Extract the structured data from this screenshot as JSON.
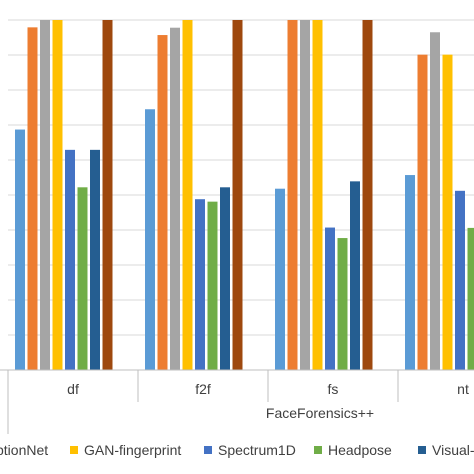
{
  "chart_data": {
    "type": "bar",
    "categories": [
      "df",
      "f2f",
      "fs",
      "nt"
    ],
    "group_label": "FaceForensics++",
    "ylim": [
      0,
      100
    ],
    "grid": true,
    "legend_position": "bottom",
    "series": [
      {
        "name": "",
        "color": "#5b9bd5",
        "values": [
          68.7,
          74.5,
          51.8,
          55.7
        ]
      },
      {
        "name": "...ptionNet",
        "color": "#ed7d31",
        "values": [
          97.9,
          95.7,
          100,
          90.1
        ]
      },
      {
        "name": "",
        "color": "#a5a5a5",
        "values": [
          100,
          97.8,
          100,
          96.5
        ]
      },
      {
        "name": "GAN-fingerprint",
        "color": "#ffc000",
        "values": [
          100,
          100,
          100,
          90.1
        ]
      },
      {
        "name": "Spectrum1D",
        "color": "#4472c4",
        "values": [
          62.9,
          48.8,
          40.7,
          51.2
        ]
      },
      {
        "name": "Headpose",
        "color": "#70ad47",
        "values": [
          52.2,
          48.1,
          37.7,
          40.6
        ]
      },
      {
        "name": "Visual-...",
        "color": "#255e91",
        "values": [
          62.9,
          52.2,
          53.9,
          44.6
        ]
      },
      {
        "name": "",
        "color": "#9e480e",
        "values": [
          100,
          100,
          100,
          null
        ]
      }
    ]
  }
}
